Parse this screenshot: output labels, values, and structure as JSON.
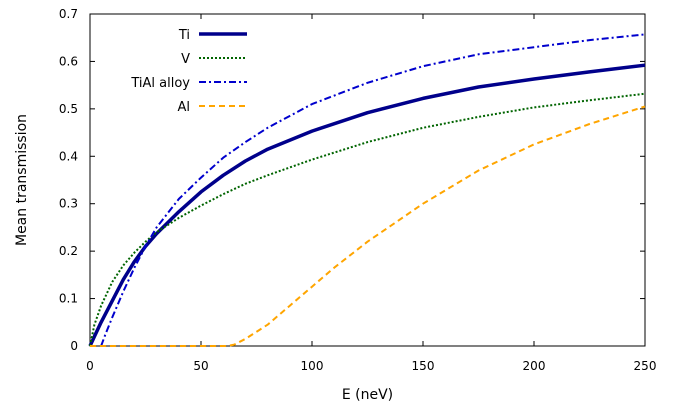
{
  "chart_data": {
    "type": "line",
    "xlabel": "E (neV)",
    "ylabel": "Mean transmission",
    "xlim": [
      0,
      250
    ],
    "ylim": [
      0,
      0.7
    ],
    "xticks": [
      0,
      50,
      100,
      150,
      200,
      250
    ],
    "yticks": [
      0,
      0.1,
      0.2,
      0.3,
      0.4,
      0.5,
      0.6,
      0.7
    ],
    "grid": false,
    "legend_position": "top-left",
    "series": [
      {
        "name": "Ti",
        "color": "#00008b",
        "style": "solid",
        "x": [
          0,
          2,
          5,
          10,
          15,
          20,
          25,
          30,
          40,
          50,
          60,
          70,
          80,
          100,
          125,
          150,
          175,
          200,
          225,
          250
        ],
        "y": [
          0,
          0.02,
          0.05,
          0.095,
          0.14,
          0.178,
          0.21,
          0.237,
          0.283,
          0.325,
          0.36,
          0.39,
          0.415,
          0.453,
          0.492,
          0.522,
          0.546,
          0.563,
          0.578,
          0.592
        ]
      },
      {
        "name": "V",
        "color": "#006400",
        "style": "dotted",
        "x": [
          0,
          2,
          5,
          10,
          15,
          20,
          25,
          30,
          40,
          50,
          60,
          70,
          80,
          100,
          125,
          150,
          175,
          200,
          225,
          250
        ],
        "y": [
          0,
          0.045,
          0.085,
          0.135,
          0.17,
          0.197,
          0.22,
          0.24,
          0.27,
          0.296,
          0.32,
          0.342,
          0.36,
          0.393,
          0.43,
          0.46,
          0.483,
          0.503,
          0.518,
          0.532
        ]
      },
      {
        "name": "TiAl alloy",
        "color": "#0000cd",
        "style": "dashdot",
        "x": [
          5,
          7,
          10,
          15,
          20,
          25,
          30,
          40,
          50,
          60,
          70,
          80,
          100,
          125,
          150,
          175,
          200,
          225,
          250
        ],
        "y": [
          0,
          0.025,
          0.06,
          0.115,
          0.165,
          0.21,
          0.25,
          0.31,
          0.355,
          0.397,
          0.43,
          0.46,
          0.51,
          0.555,
          0.59,
          0.615,
          0.63,
          0.645,
          0.657
        ]
      },
      {
        "name": "Al",
        "color": "#ffa500",
        "style": "dashed",
        "x": [
          0,
          20,
          40,
          55,
          62,
          65,
          70,
          80,
          90,
          100,
          110,
          125,
          150,
          175,
          200,
          225,
          250
        ],
        "y": [
          0,
          0,
          0,
          0,
          0,
          0.003,
          0.015,
          0.045,
          0.085,
          0.125,
          0.165,
          0.22,
          0.3,
          0.37,
          0.425,
          0.468,
          0.505
        ]
      }
    ]
  }
}
